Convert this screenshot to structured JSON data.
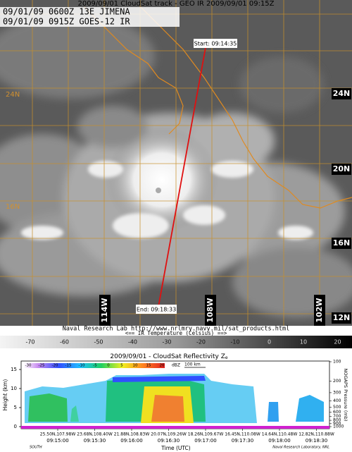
{
  "header": {
    "title": "2009/09/01 CloudSat track - GEO IR 2009/09/01 09:15Z",
    "line1": "09/01/09 0600Z 13E JIMENA",
    "line2": "09/01/09 0915Z GOES-12 IR"
  },
  "map": {
    "start": "Start: 09:14:35",
    "end": "End: 09:18:33",
    "lat_labels": [
      "24N",
      "20N",
      "16N",
      "12N"
    ],
    "lat_labels_left": [
      "24N",
      "16N"
    ],
    "lon_labels": [
      "114W",
      "108W",
      "102W"
    ],
    "credit": "Naval Research Lab http://www.nrlmry.navy.mil/sat_products.html",
    "colorbar_caption": "<==   IR Temperature (Celsius)   ==>",
    "colorbar_ticks": [
      -70,
      -60,
      -50,
      -40,
      -30,
      -20,
      -10,
      0,
      10,
      20
    ]
  },
  "profile": {
    "title": "2009/09/01 - CloudSat Reflectivity Z",
    "title_sub": "e",
    "colorbar_ticks": [
      -30,
      -25,
      -20,
      -15,
      -10,
      -5,
      0,
      5,
      10,
      15,
      20
    ],
    "colorbar_unit": "dBZ",
    "scale": "100 km",
    "y_label": "Height (km)",
    "y_ticks": [
      0,
      5,
      10,
      15
    ],
    "y2_label": "NOGAPS Pressure (mb)",
    "y2_ticks": [
      100,
      200,
      300,
      400,
      500,
      600,
      700,
      800,
      900,
      1000
    ],
    "x_labels": [
      {
        "position": "25.50N,107.98W",
        "time": "09:15:00"
      },
      {
        "position": "23.68N,108.40W",
        "time": "09:15:30"
      },
      {
        "position": "21.88N,108.83W",
        "time": "09:16:00"
      },
      {
        "position": "20.07N,109.26W",
        "time": "09:16:30"
      },
      {
        "position": "18.26N,109.67W",
        "time": "09:17:00"
      },
      {
        "position": "16.45N,110.08W",
        "time": "09:17:30"
      },
      {
        "position": "14.64N,110.48W",
        "time": "09:18:00"
      },
      {
        "position": "12.82N,110.88W",
        "time": "09:18:30"
      }
    ],
    "x_title": "Time (UTC)",
    "direction": "SOUTH",
    "credit": "Naval Research Laboratory, NRL"
  }
}
